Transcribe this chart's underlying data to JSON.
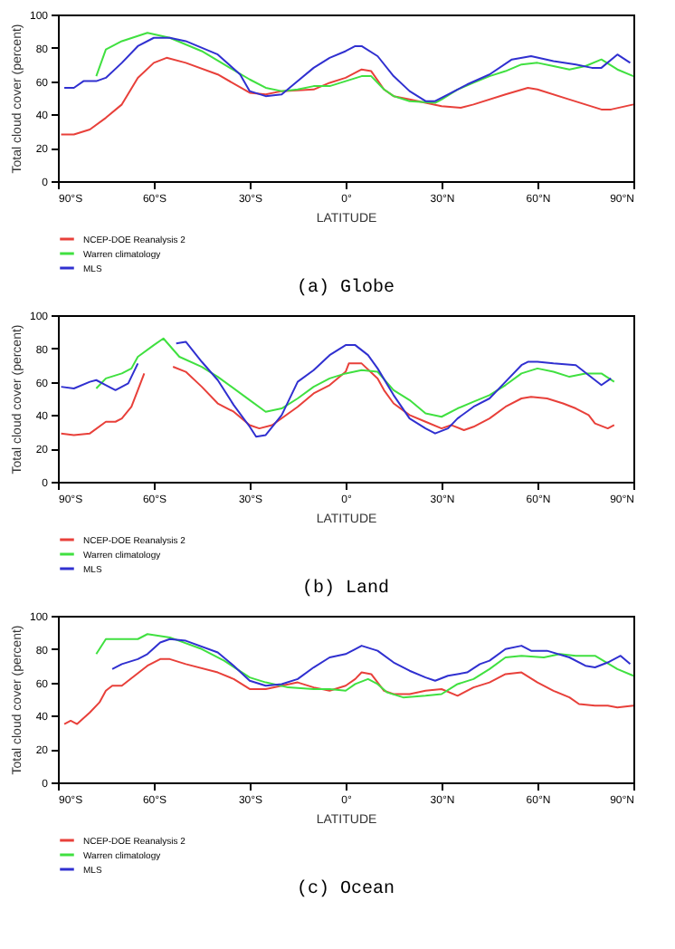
{
  "chart_data": [
    {
      "type": "line",
      "title": "(a) Globe",
      "xlabel": "LATITUDE",
      "ylabel": "Total cloud cover (percent)",
      "xlim": [
        -90,
        90
      ],
      "xticks": [
        {
          "value": -90,
          "label": "90°S"
        },
        {
          "value": -60,
          "label": "60°S"
        },
        {
          "value": -30,
          "label": "30°S"
        },
        {
          "value": 0,
          "label": "0°"
        },
        {
          "value": 30,
          "label": "30°N"
        },
        {
          "value": 60,
          "label": "60°N"
        },
        {
          "value": 90,
          "label": "90°N"
        }
      ],
      "ylim": [
        0,
        100
      ],
      "yticks": [
        0,
        20,
        40,
        60,
        80,
        100
      ],
      "grid": false,
      "legend": "bottom left",
      "series": [
        {
          "name": "NCEP-DOE Reanalysis 2",
          "color": "#e8403a",
          "x": [
            -89,
            -85,
            -80,
            -75,
            -70,
            -65,
            -60,
            -56,
            -50,
            -40,
            -30,
            -25,
            -20,
            -10,
            -5,
            0,
            5,
            8,
            12,
            15,
            20,
            25,
            30,
            36,
            40,
            50,
            57,
            60,
            70,
            80,
            83,
            90
          ],
          "values": [
            28,
            28,
            31,
            38,
            46,
            62,
            71,
            74,
            71,
            64,
            53,
            52,
            54,
            55,
            59,
            62,
            67,
            66,
            55,
            51,
            49,
            47,
            45,
            44,
            46,
            52,
            56,
            55,
            49,
            43,
            43,
            46
          ]
        },
        {
          "name": "Warren climatology",
          "color": "#40e040",
          "x": [
            -78,
            -75,
            -70,
            -62,
            -55,
            -45,
            -38,
            -30,
            -25,
            -20,
            -15,
            -10,
            -5,
            0,
            5,
            8,
            12,
            15,
            20,
            28,
            30,
            35,
            40,
            45,
            50,
            55,
            60,
            65,
            70,
            75,
            80,
            85,
            90
          ],
          "values": [
            63,
            79,
            84,
            89,
            86,
            78,
            70,
            61,
            56,
            54,
            55,
            57,
            57,
            60,
            63,
            63,
            55,
            51,
            48,
            47,
            49,
            55,
            59,
            63,
            66,
            70,
            71,
            69,
            67,
            69,
            73,
            67,
            63
          ]
        },
        {
          "name": "MLS",
          "color": "#3030d0",
          "x": [
            -88,
            -85,
            -82,
            -78,
            -75,
            -70,
            -65,
            -60,
            -55,
            -50,
            -40,
            -33,
            -30,
            -25,
            -20,
            -15,
            -10,
            -5,
            0,
            3,
            5,
            10,
            15,
            20,
            25,
            28,
            32,
            38,
            45,
            52,
            58,
            65,
            72,
            77,
            80,
            85,
            89
          ],
          "values": [
            56,
            56,
            60,
            60,
            62,
            71,
            81,
            86,
            86,
            84,
            76,
            64,
            54,
            51,
            52,
            60,
            68,
            74,
            78,
            81,
            81,
            75,
            63,
            54,
            48,
            48,
            52,
            58,
            64,
            73,
            75,
            72,
            70,
            68,
            68,
            76,
            71
          ]
        }
      ]
    },
    {
      "type": "line",
      "title": "(b) Land",
      "xlabel": "LATITUDE",
      "ylabel": "Total cloud cover (percent)",
      "xlim": [
        -90,
        90
      ],
      "xticks": [
        {
          "value": -90,
          "label": "90°S"
        },
        {
          "value": -60,
          "label": "60°S"
        },
        {
          "value": -30,
          "label": "30°S"
        },
        {
          "value": 0,
          "label": "0°"
        },
        {
          "value": 30,
          "label": "30°N"
        },
        {
          "value": 60,
          "label": "60°N"
        },
        {
          "value": 90,
          "label": "90°N"
        }
      ],
      "ylim": [
        0,
        100
      ],
      "yticks": [
        0,
        20,
        40,
        60,
        80,
        100
      ],
      "grid": false,
      "legend": "bottom left",
      "series": [
        {
          "name": "NCEP-DOE Reanalysis 2",
          "color": "#e8403a",
          "x": [
            -89,
            -85,
            -80,
            -75,
            -72,
            -70,
            -67,
            -65,
            -63,
            -58,
            -54,
            -50,
            -45,
            -40,
            -35,
            -30,
            -27,
            -23,
            -15,
            -10,
            -5,
            0,
            1,
            5,
            10,
            12,
            15,
            20,
            25,
            30,
            33,
            37,
            40,
            45,
            50,
            55,
            58,
            63,
            68,
            72,
            76,
            78,
            82,
            84
          ],
          "values": [
            29,
            28,
            29,
            36,
            36,
            38,
            45,
            55,
            65,
            null,
            69,
            66,
            57,
            47,
            42,
            34,
            32,
            34,
            45,
            53,
            58,
            66,
            71,
            71,
            62,
            55,
            47,
            40,
            36,
            32,
            34,
            31,
            33,
            38,
            45,
            50,
            51,
            50,
            47,
            44,
            40,
            35,
            32,
            34
          ]
        },
        {
          "name": "Warren climatology",
          "color": "#40e040",
          "x": [
            -78,
            -75,
            -70,
            -67,
            -65,
            -60,
            -57,
            -52,
            -45,
            -40,
            -30,
            -25,
            -20,
            -15,
            -10,
            -5,
            0,
            5,
            10,
            15,
            20,
            25,
            30,
            35,
            40,
            45,
            50,
            55,
            60,
            65,
            70,
            75,
            80,
            84
          ],
          "values": [
            56,
            62,
            65,
            68,
            75,
            82,
            86,
            75,
            69,
            63,
            49,
            42,
            44,
            50,
            57,
            62,
            65,
            67,
            66,
            55,
            49,
            41,
            39,
            44,
            48,
            52,
            58,
            65,
            68,
            66,
            63,
            65,
            65,
            60
          ]
        },
        {
          "name": "MLS",
          "color": "#3030d0",
          "x": [
            -89,
            -85,
            -80,
            -78,
            -75,
            -72,
            -68,
            -65,
            -59,
            -53,
            -50,
            -45,
            -40,
            -35,
            -30,
            -28,
            -25,
            -20,
            -17,
            -15,
            -10,
            -5,
            0,
            3,
            7,
            10,
            15,
            20,
            25,
            28,
            32,
            35,
            40,
            45,
            50,
            55,
            57,
            60,
            65,
            72,
            78,
            80,
            83
          ],
          "values": [
            57,
            56,
            60,
            61,
            58,
            55,
            59,
            71,
            null,
            83,
            84,
            72,
            61,
            46,
            33,
            27,
            28,
            40,
            52,
            60,
            67,
            76,
            82,
            82,
            76,
            68,
            52,
            38,
            32,
            29,
            32,
            38,
            45,
            50,
            60,
            70,
            72,
            72,
            71,
            70,
            61,
            58,
            62
          ]
        }
      ]
    },
    {
      "type": "line",
      "title": "(c) Ocean",
      "xlabel": "LATITUDE",
      "ylabel": "Total cloud cover (percent)",
      "xlim": [
        -90,
        90
      ],
      "xticks": [
        {
          "value": -90,
          "label": "90°S"
        },
        {
          "value": -60,
          "label": "60°S"
        },
        {
          "value": -30,
          "label": "30°S"
        },
        {
          "value": 0,
          "label": "0°"
        },
        {
          "value": 30,
          "label": "30°N"
        },
        {
          "value": 60,
          "label": "60°N"
        },
        {
          "value": 90,
          "label": "90°N"
        }
      ],
      "ylim": [
        0,
        100
      ],
      "yticks": [
        0,
        20,
        40,
        60,
        80,
        100
      ],
      "grid": false,
      "legend": "bottom left",
      "series": [
        {
          "name": "NCEP-DOE Reanalysis 2",
          "color": "#e8403a",
          "x": [
            -88,
            -86,
            -84,
            -80,
            -77,
            -75,
            -73,
            -70,
            -66,
            -62,
            -58,
            -55,
            -50,
            -40,
            -35,
            -30,
            -25,
            -20,
            -15,
            -10,
            -5,
            0,
            3,
            5,
            8,
            12,
            15,
            20,
            25,
            30,
            35,
            40,
            45,
            50,
            55,
            60,
            65,
            70,
            73,
            78,
            82,
            85,
            90
          ],
          "values": [
            35,
            37,
            35,
            42,
            48,
            55,
            58,
            58,
            64,
            70,
            74,
            74,
            71,
            66,
            62,
            56,
            56,
            58,
            60,
            57,
            55,
            58,
            62,
            66,
            65,
            55,
            53,
            53,
            55,
            56,
            52,
            57,
            60,
            65,
            66,
            60,
            55,
            51,
            47,
            46,
            46,
            45,
            46
          ]
        },
        {
          "name": "Warren climatology",
          "color": "#40e040",
          "x": [
            -78,
            -75,
            -70,
            -65,
            -62,
            -55,
            -45,
            -38,
            -30,
            -25,
            -18,
            -10,
            -5,
            0,
            3,
            7,
            10,
            13,
            18,
            25,
            30,
            35,
            40,
            45,
            50,
            55,
            62,
            67,
            72,
            78,
            85,
            90
          ],
          "values": [
            77,
            86,
            86,
            86,
            89,
            87,
            80,
            73,
            63,
            60,
            57,
            56,
            56,
            55,
            59,
            62,
            59,
            54,
            51,
            52,
            53,
            59,
            62,
            68,
            75,
            76,
            75,
            77,
            76,
            76,
            68,
            64
          ]
        },
        {
          "name": "MLS",
          "color": "#3030d0",
          "x": [
            -73,
            -70,
            -65,
            -62,
            -58,
            -55,
            -50,
            -40,
            -35,
            -30,
            -25,
            -20,
            -15,
            -10,
            -5,
            0,
            3,
            5,
            10,
            15,
            20,
            25,
            28,
            32,
            38,
            42,
            45,
            50,
            55,
            58,
            63,
            70,
            75,
            78,
            82,
            86,
            89
          ],
          "values": [
            68,
            71,
            74,
            77,
            84,
            86,
            85,
            78,
            70,
            61,
            58,
            59,
            62,
            69,
            75,
            77,
            80,
            82,
            79,
            72,
            67,
            63,
            61,
            64,
            66,
            71,
            73,
            80,
            82,
            79,
            79,
            75,
            70,
            69,
            72,
            76,
            71
          ]
        }
      ]
    }
  ]
}
